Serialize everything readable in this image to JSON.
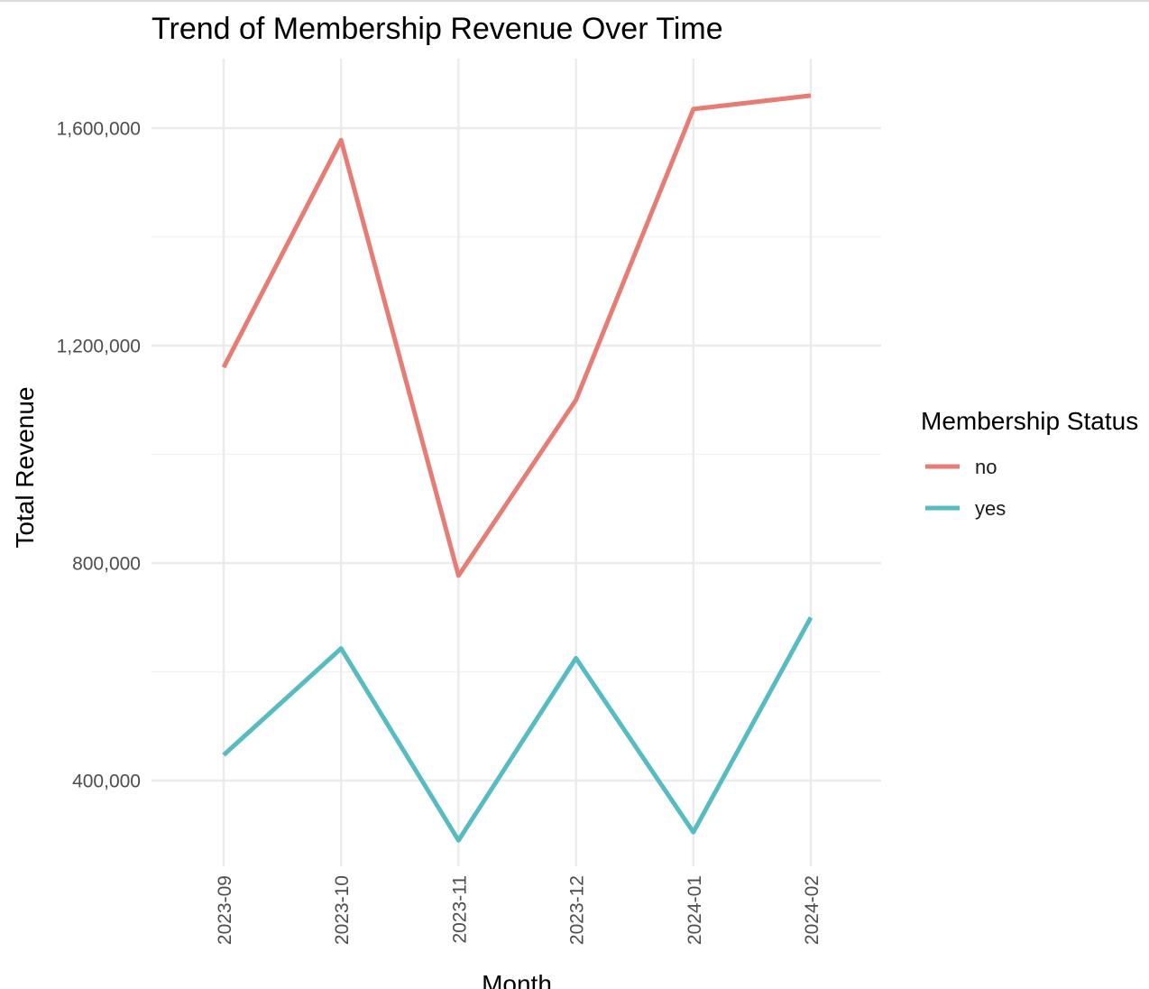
{
  "chart_data": {
    "type": "line",
    "title": "Trend of Membership Revenue Over Time",
    "xlabel": "Month",
    "ylabel": "Total Revenue",
    "categories": [
      "2023-09",
      "2023-10",
      "2023-11",
      "2023-12",
      "2024-01",
      "2024-02"
    ],
    "y_ticks": [
      400000,
      800000,
      1200000,
      1600000
    ],
    "y_tick_labels": [
      "400,000",
      "800,000",
      "1,200,000",
      "1,600,000"
    ],
    "ylim": [
      225000,
      1735000
    ],
    "grid": true,
    "legend_title": "Membership Status",
    "legend_position": "right",
    "series": [
      {
        "name": "no",
        "color": "#E67C73",
        "values": [
          1160000,
          1578000,
          777000,
          1100000,
          1635000,
          1660000
        ]
      },
      {
        "name": "yes",
        "color": "#56BCC2",
        "values": [
          447000,
          643000,
          290000,
          625000,
          305000,
          700000
        ]
      }
    ]
  }
}
